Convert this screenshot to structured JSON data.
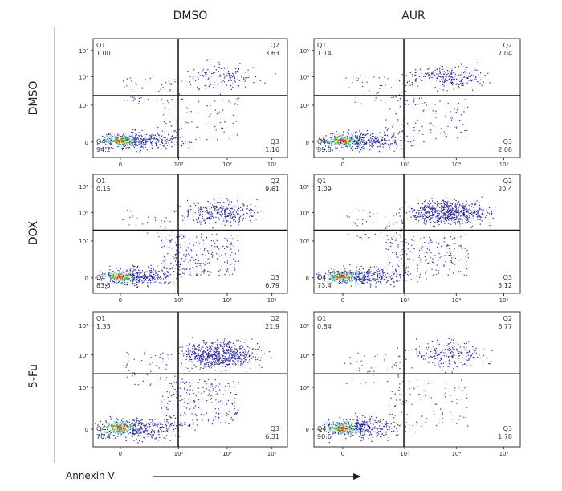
{
  "chart_data": {
    "type": "scatter",
    "columns": [
      "DMSO",
      "AUR"
    ],
    "rows": [
      "DMSO",
      "DOX",
      "5-Fu"
    ],
    "xlabel": "Annexin  V",
    "x_ticks": [
      "0",
      "10³",
      "10⁴",
      "10⁵"
    ],
    "y_ticks": [
      "10⁵",
      "10⁴",
      "10³",
      "0"
    ],
    "quadrant_names": [
      "Q1",
      "Q2",
      "Q3",
      "Q4"
    ],
    "panels": [
      {
        "row": "DMSO",
        "column": "DMSO",
        "Q1": "1.00",
        "Q2": "3.63",
        "Q3": "1.16",
        "Q4": "94.2"
      },
      {
        "row": "DMSO",
        "column": "AUR",
        "Q1": "1.14",
        "Q2": "7.04",
        "Q3": "2.08",
        "Q4": "89.8"
      },
      {
        "row": "DOX",
        "column": "DMSO",
        "Q1": "0.15",
        "Q2": "9.61",
        "Q3": "6.79",
        "Q4": "83.5"
      },
      {
        "row": "DOX",
        "column": "AUR",
        "Q1": "1.09",
        "Q2": "20.4",
        "Q3": "5.12",
        "Q4": "73.4"
      },
      {
        "row": "5-Fu",
        "column": "DMSO",
        "Q1": "1.35",
        "Q2": "21.9",
        "Q3": "6.31",
        "Q4": "70.4"
      },
      {
        "row": "5-Fu",
        "column": "AUR",
        "Q1": "0.84",
        "Q2": "6.77",
        "Q3": "1.78",
        "Q4": "90.6"
      }
    ],
    "density_colors": [
      "#ff2a1a",
      "#f7e84a",
      "#3cb44a",
      "#6ad0e8",
      "#2a2aa0"
    ]
  }
}
